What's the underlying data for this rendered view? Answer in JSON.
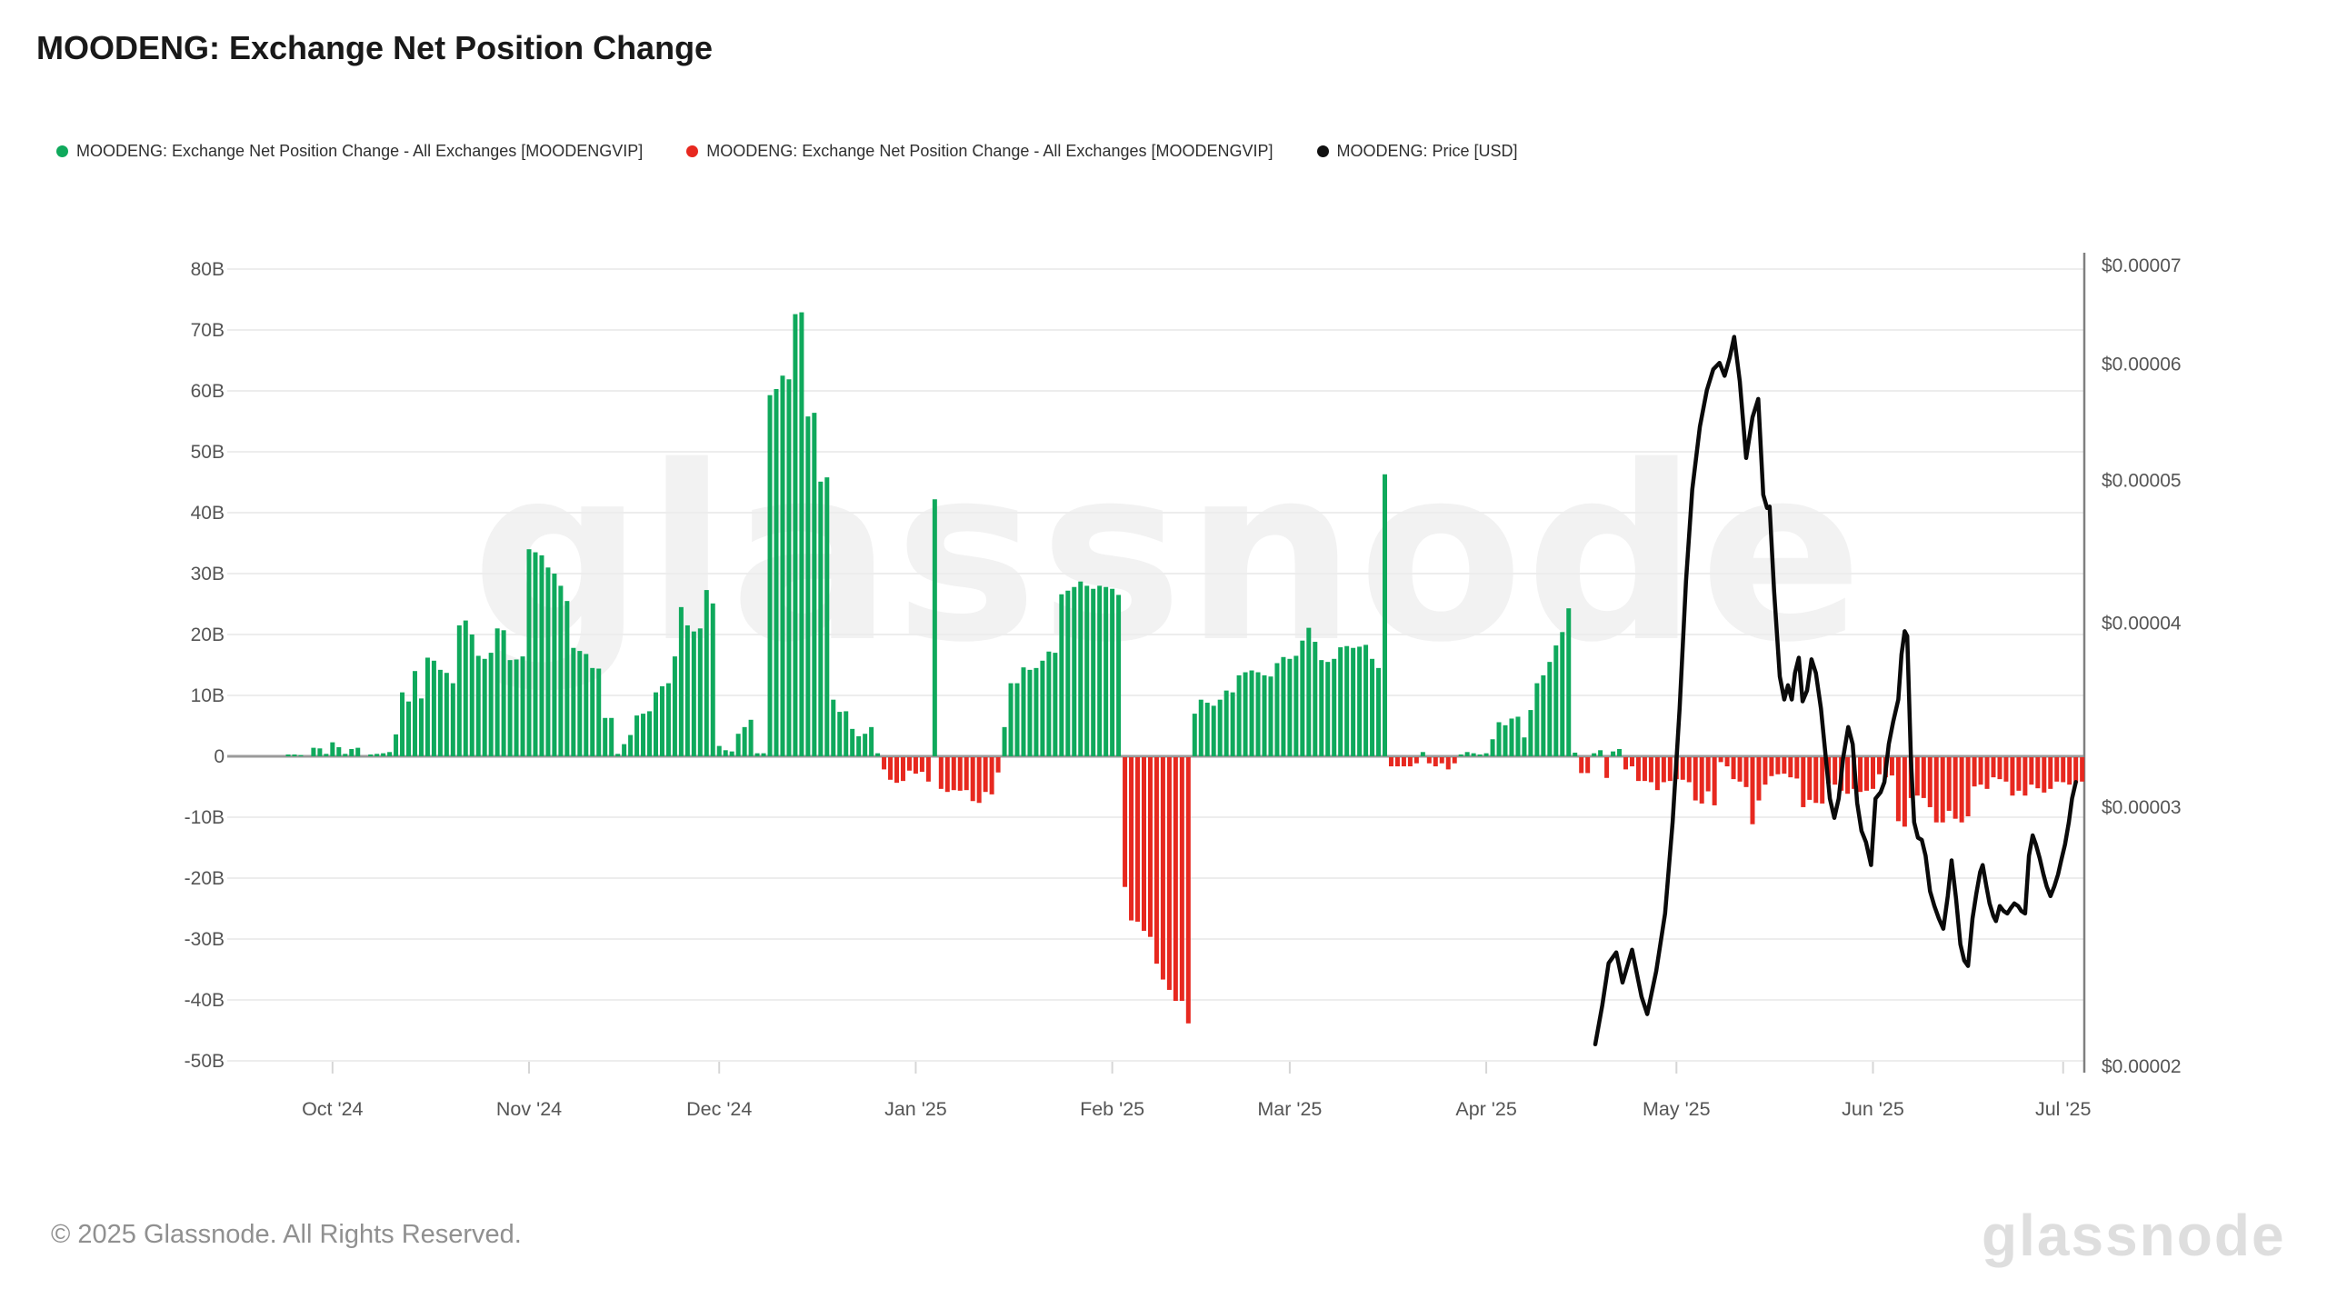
{
  "page": {
    "title": "MOODENG: Exchange Net Position Change",
    "watermark": "glassnode",
    "footer": "© 2025 Glassnode. All Rights Reserved.",
    "brand": "glassnode"
  },
  "legend": [
    {
      "label": "MOODENG: Exchange Net Position Change - All Exchanges [MOODENGVIP]",
      "color": "#0fa95c"
    },
    {
      "label": "MOODENG: Exchange Net Position Change - All Exchanges [MOODENGVIP]",
      "color": "#e7281f"
    },
    {
      "label": "MOODENG: Price [USD]",
      "color": "#111111"
    }
  ],
  "chart_data": {
    "type": "bar+line",
    "title": "MOODENG: Exchange Net Position Change",
    "bar_series_name": "MOODENG: Exchange Net Position Change - All Exchanges [MOODENGVIP]",
    "bar_unit": "billions of MOODENG per day",
    "start_date": "2024-09-24",
    "positive_color": "#0fa95c",
    "negative_color": "#e7281f",
    "grid": true,
    "legend_position": "top",
    "values": [
      0.3,
      0.3,
      0.2,
      0,
      1.4,
      1.3,
      0.4,
      2.3,
      1.5,
      0.4,
      1.2,
      1.4,
      0,
      0.3,
      0.4,
      0.5,
      0.7,
      3.6,
      10.5,
      9,
      14,
      9.5,
      16.2,
      15.7,
      14.2,
      13.7,
      12,
      21.5,
      22.3,
      20,
      16.5,
      16,
      17,
      21,
      20.7,
      15.8,
      15.9,
      16.4,
      34,
      33.5,
      33,
      31,
      30,
      28,
      25.5,
      17.8,
      17.3,
      16.8,
      14.5,
      14.4,
      6.3,
      6.3,
      0.4,
      2,
      3.5,
      6.7,
      7,
      7.4,
      10.5,
      11.5,
      12,
      16.4,
      24.5,
      21.5,
      20.5,
      21,
      27.3,
      25.1,
      1.7,
      1,
      0.8,
      3.7,
      4.8,
      6,
      0.5,
      0.5,
      59.3,
      60.3,
      62.5,
      61.9,
      72.6,
      72.9,
      55.8,
      56.4,
      45.1,
      45.8,
      9.3,
      7.3,
      7.4,
      4.5,
      3.3,
      3.7,
      4.8,
      0.5,
      -2,
      -3.7,
      -4.2,
      -3.9,
      -2.2,
      -2.7,
      -2.4,
      -4,
      42.2,
      -5.2,
      -5.7,
      -5.4,
      -5.5,
      -5.4,
      -7.2,
      -7.5,
      -5.7,
      -6.1,
      -2.5,
      4.8,
      12,
      12,
      14.6,
      14.2,
      14.5,
      15.7,
      17.2,
      17,
      26.6,
      27.2,
      27.8,
      28.7,
      28,
      27.5,
      28,
      27.8,
      27.5,
      26.5,
      -21.3,
      -26.8,
      -27,
      -28.5,
      -29.5,
      -33.9,
      -36.5,
      -38.2,
      -40,
      -40,
      -43.7,
      7,
      9.3,
      8.8,
      8.3,
      9.3,
      10.8,
      10.5,
      13.3,
      13.8,
      14.1,
      13.8,
      13.3,
      13.1,
      15.3,
      16.3,
      16,
      16.5,
      19,
      21.1,
      18.8,
      15.8,
      15.5,
      16,
      17.9,
      18.1,
      17.8,
      18,
      18.3,
      16,
      14.5,
      46.3,
      -1.5,
      -1.5,
      -1.5,
      -1.5,
      -1,
      0.7,
      -1,
      -1.5,
      -1,
      -2,
      -1,
      0.3,
      0.7,
      0.5,
      0.3,
      0.5,
      2.8,
      5.6,
      5.1,
      6.2,
      6.5,
      3.1,
      7.6,
      12,
      13.3,
      15.5,
      18.2,
      20.4,
      24.3,
      0.6,
      -2.6,
      -2.6,
      0.5,
      1,
      -3.4,
      0.8,
      1.2,
      -2,
      -1.5,
      -3.9,
      -3.9,
      -4.1,
      -5.4,
      -4.1,
      -3.9,
      -3.6,
      -3.7,
      -4.1,
      -7.1,
      -7.6,
      -5.6,
      -7.9,
      -0.8,
      -1.5,
      -3.6,
      -4,
      -4.9,
      -11,
      -7.1,
      -4.5,
      -3.1,
      -2.8,
      -2.7,
      -3.3,
      -3.5,
      -8.2,
      -7,
      -7.5,
      -7.6,
      -4.3,
      -4.5,
      -5.5,
      -6,
      -5.2,
      -5.7,
      -5.5,
      -5.2,
      -2.8,
      -3.3,
      -3,
      -10.5,
      -11.4,
      -6.7,
      -6.3,
      -6.7,
      -8.2,
      -10.7,
      -10.7,
      -8.8,
      -10.1,
      -10.7,
      -9.7,
      -4.8,
      -4.5,
      -5.2,
      -3.3,
      -3.6,
      -4,
      -6.3,
      -5.5,
      -6.3,
      -4.5,
      -5.1,
      -5.8,
      -5.2,
      -4,
      -4.1,
      -4.5,
      -4.2,
      -4
    ],
    "left_axis": {
      "unit": "B",
      "min": -50,
      "max": 80,
      "ticks": [
        {
          "label": "80B",
          "value": 80
        },
        {
          "label": "70B",
          "value": 70
        },
        {
          "label": "60B",
          "value": 60
        },
        {
          "label": "50B",
          "value": 50
        },
        {
          "label": "40B",
          "value": 40
        },
        {
          "label": "30B",
          "value": 30
        },
        {
          "label": "20B",
          "value": 20
        },
        {
          "label": "10B",
          "value": 10
        },
        {
          "label": "0",
          "value": 0
        },
        {
          "label": "-10B",
          "value": -10
        },
        {
          "label": "-20B",
          "value": -20
        },
        {
          "label": "-30B",
          "value": -30
        },
        {
          "label": "-40B",
          "value": -40
        },
        {
          "label": "-50B",
          "value": -50
        }
      ]
    },
    "right_axis": {
      "scale": "log",
      "min": 2e-05,
      "max": 7e-05,
      "ticks": [
        {
          "label": "$0.00007",
          "value": 7e-05
        },
        {
          "label": "$0.00006",
          "value": 6e-05
        },
        {
          "label": "$0.00005",
          "value": 5e-05
        },
        {
          "label": "$0.00004",
          "value": 4e-05
        },
        {
          "label": "$0.00003",
          "value": 3e-05
        },
        {
          "label": "$0.00002",
          "value": 2e-05
        }
      ]
    },
    "months": [
      {
        "label": "Oct '24",
        "day": 7
      },
      {
        "label": "Nov '24",
        "day": 38
      },
      {
        "label": "Dec '24",
        "day": 68
      },
      {
        "label": "Jan '25",
        "day": 99
      },
      {
        "label": "Feb '25",
        "day": 130
      },
      {
        "label": "Mar '25",
        "day": 158
      },
      {
        "label": "Apr '25",
        "day": 189
      },
      {
        "label": "May '25",
        "day": 219
      },
      {
        "label": "Jun '25",
        "day": 250
      },
      {
        "label": "Jul '25",
        "day": 280
      }
    ],
    "price_line": {
      "name": "MOODENG: Price [USD]",
      "color": "#0a0a0a",
      "points": [
        [
          206.2,
          2.07e-05
        ],
        [
          207.3,
          2.2e-05
        ],
        [
          208.3,
          2.35e-05
        ],
        [
          209.5,
          2.39e-05
        ],
        [
          210.5,
          2.28e-05
        ],
        [
          212,
          2.4e-05
        ],
        [
          213.5,
          2.23e-05
        ],
        [
          214.4,
          2.17e-05
        ],
        [
          215.8,
          2.32e-05
        ],
        [
          217.2,
          2.54e-05
        ],
        [
          218.4,
          2.93e-05
        ],
        [
          219.5,
          3.5e-05
        ],
        [
          220.5,
          4.27e-05
        ],
        [
          221.5,
          4.93e-05
        ],
        [
          222.7,
          5.44e-05
        ],
        [
          223.8,
          5.76e-05
        ],
        [
          224.8,
          5.95e-05
        ],
        [
          225.8,
          6.01e-05
        ],
        [
          226.6,
          5.89e-05
        ],
        [
          227.4,
          6.06e-05
        ],
        [
          228.1,
          6.26e-05
        ],
        [
          229,
          5.84e-05
        ],
        [
          230,
          5.18e-05
        ],
        [
          231,
          5.52e-05
        ],
        [
          231.9,
          5.68e-05
        ],
        [
          232.7,
          4.89e-05
        ],
        [
          233.3,
          4.79e-05
        ],
        [
          233.7,
          4.8e-05
        ],
        [
          234.4,
          4.21e-05
        ],
        [
          235.3,
          3.68e-05
        ],
        [
          236,
          3.55e-05
        ],
        [
          236.6,
          3.63e-05
        ],
        [
          237.2,
          3.55e-05
        ],
        [
          237.7,
          3.7e-05
        ],
        [
          238.3,
          3.79e-05
        ],
        [
          238.9,
          3.54e-05
        ],
        [
          239.6,
          3.6e-05
        ],
        [
          240.3,
          3.78e-05
        ],
        [
          241,
          3.7e-05
        ],
        [
          241.8,
          3.5e-05
        ],
        [
          242.5,
          3.26e-05
        ],
        [
          243.2,
          3.04e-05
        ],
        [
          243.9,
          2.95e-05
        ],
        [
          244.6,
          3.04e-05
        ],
        [
          245.3,
          3.24e-05
        ],
        [
          246.1,
          3.4e-05
        ],
        [
          246.8,
          3.31e-05
        ],
        [
          247.5,
          3.02e-05
        ],
        [
          248.2,
          2.89e-05
        ],
        [
          248.9,
          2.84e-05
        ],
        [
          249.7,
          2.74e-05
        ],
        [
          250.4,
          3.04e-05
        ],
        [
          251.2,
          3.07e-05
        ],
        [
          251.8,
          3.12e-05
        ],
        [
          252.5,
          3.31e-05
        ],
        [
          253.2,
          3.43e-05
        ],
        [
          254,
          3.55e-05
        ],
        [
          254.5,
          3.81e-05
        ],
        [
          255,
          3.95e-05
        ],
        [
          255.4,
          3.92e-05
        ],
        [
          256,
          3.23e-05
        ],
        [
          256.5,
          2.93e-05
        ],
        [
          257.1,
          2.86e-05
        ],
        [
          257.7,
          2.85e-05
        ],
        [
          258.3,
          2.78e-05
        ],
        [
          259,
          2.63e-05
        ],
        [
          259.7,
          2.57e-05
        ],
        [
          260.4,
          2.52e-05
        ],
        [
          261.1,
          2.48e-05
        ],
        [
          261.8,
          2.61e-05
        ],
        [
          262.4,
          2.76e-05
        ],
        [
          263.1,
          2.6e-05
        ],
        [
          263.8,
          2.42e-05
        ],
        [
          264.4,
          2.36e-05
        ],
        [
          265,
          2.34e-05
        ],
        [
          265.7,
          2.52e-05
        ],
        [
          266.3,
          2.62e-05
        ],
        [
          266.9,
          2.71e-05
        ],
        [
          267.3,
          2.74e-05
        ],
        [
          267.9,
          2.65e-05
        ],
        [
          268.4,
          2.58e-05
        ],
        [
          269,
          2.53e-05
        ],
        [
          269.4,
          2.51e-05
        ],
        [
          270,
          2.57e-05
        ],
        [
          270.6,
          2.55e-05
        ],
        [
          271.2,
          2.54e-05
        ],
        [
          271.7,
          2.56e-05
        ],
        [
          272.3,
          2.58e-05
        ],
        [
          272.9,
          2.57e-05
        ],
        [
          273.4,
          2.55e-05
        ],
        [
          274,
          2.54e-05
        ],
        [
          274.6,
          2.78e-05
        ],
        [
          275.2,
          2.87e-05
        ],
        [
          275.7,
          2.83e-05
        ],
        [
          276.3,
          2.77e-05
        ],
        [
          276.9,
          2.7e-05
        ],
        [
          277.4,
          2.65e-05
        ],
        [
          278,
          2.61e-05
        ],
        [
          278.6,
          2.65e-05
        ],
        [
          279.2,
          2.7e-05
        ],
        [
          279.7,
          2.76e-05
        ],
        [
          280.3,
          2.83e-05
        ],
        [
          280.9,
          2.93e-05
        ],
        [
          281.4,
          3.04e-05
        ],
        [
          282,
          3.12e-05
        ]
      ]
    }
  }
}
